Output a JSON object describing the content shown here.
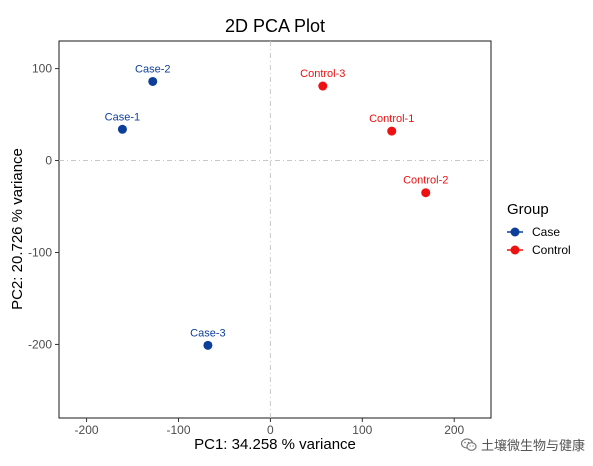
{
  "chart_data": {
    "type": "scatter",
    "title": "2D PCA Plot",
    "xlabel": "PC1: 34.258 % variance",
    "ylabel": "PC2: 20.726 % variance",
    "xlim": [
      -230,
      240
    ],
    "ylim": [
      -280,
      130
    ],
    "xticks": [
      -200,
      -100,
      0,
      100,
      200
    ],
    "yticks": [
      100,
      0,
      -100,
      -200
    ],
    "reference_lines": {
      "x": 0,
      "y": 0,
      "style": "dashed"
    },
    "grid": false,
    "legend": {
      "title": "Group",
      "placement": "right"
    },
    "series": [
      {
        "name": "Case",
        "color": "#0d3f9a",
        "points": [
          {
            "label": "Case-1",
            "x": -161,
            "y": 34
          },
          {
            "label": "Case-2",
            "x": -128,
            "y": 86
          },
          {
            "label": "Case-3",
            "x": -68,
            "y": -201
          }
        ]
      },
      {
        "name": "Control",
        "color": "#ee1111",
        "points": [
          {
            "label": "Control-1",
            "x": 132,
            "y": 32
          },
          {
            "label": "Control-2",
            "x": 169,
            "y": -35
          },
          {
            "label": "Control-3",
            "x": 57,
            "y": 81
          }
        ]
      }
    ]
  },
  "watermark": {
    "text": "土壤微生物与健康",
    "icon": "wechat-icon"
  }
}
